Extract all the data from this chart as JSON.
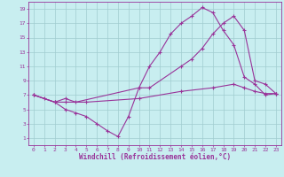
{
  "background_color": "#c8eef0",
  "grid_color": "#a0ccd0",
  "line_color": "#993399",
  "spine_color": "#993399",
  "xlim": [
    -0.5,
    23.5
  ],
  "ylim": [
    0,
    20
  ],
  "xticks": [
    0,
    1,
    2,
    3,
    4,
    5,
    6,
    7,
    8,
    9,
    10,
    11,
    12,
    13,
    14,
    15,
    16,
    17,
    18,
    19,
    20,
    21,
    22,
    23
  ],
  "yticks": [
    1,
    3,
    5,
    7,
    9,
    11,
    13,
    15,
    17,
    19
  ],
  "xlabel": "Windchill (Refroidissement éolien,°C)",
  "tick_fontsize": 4.5,
  "xlabel_fontsize": 5.5,
  "line1_x": [
    0,
    1,
    2,
    3,
    4,
    5,
    6,
    7,
    8,
    9,
    10,
    11,
    12,
    13,
    14,
    15,
    16,
    17,
    18,
    19,
    20,
    21,
    22,
    23
  ],
  "line1_y": [
    7,
    6.5,
    6,
    5,
    4.5,
    4,
    3,
    2,
    1.2,
    4,
    8,
    11,
    13,
    15.5,
    17,
    18,
    19.2,
    18.5,
    16,
    14,
    9.5,
    8.5,
    7,
    7.2
  ],
  "line2_x": [
    0,
    2,
    3,
    4,
    10,
    11,
    14,
    15,
    16,
    17,
    18,
    19,
    20,
    21,
    22,
    23
  ],
  "line2_y": [
    7,
    6,
    6.5,
    6,
    8,
    8,
    11,
    12,
    13.5,
    15.5,
    17,
    18,
    16,
    9,
    8.5,
    7.2
  ],
  "line3_x": [
    0,
    2,
    3,
    5,
    10,
    14,
    17,
    19,
    20,
    21,
    22,
    23
  ],
  "line3_y": [
    7,
    6,
    6,
    6,
    6.5,
    7.5,
    8,
    8.5,
    8,
    7.5,
    7.2,
    7.2
  ]
}
